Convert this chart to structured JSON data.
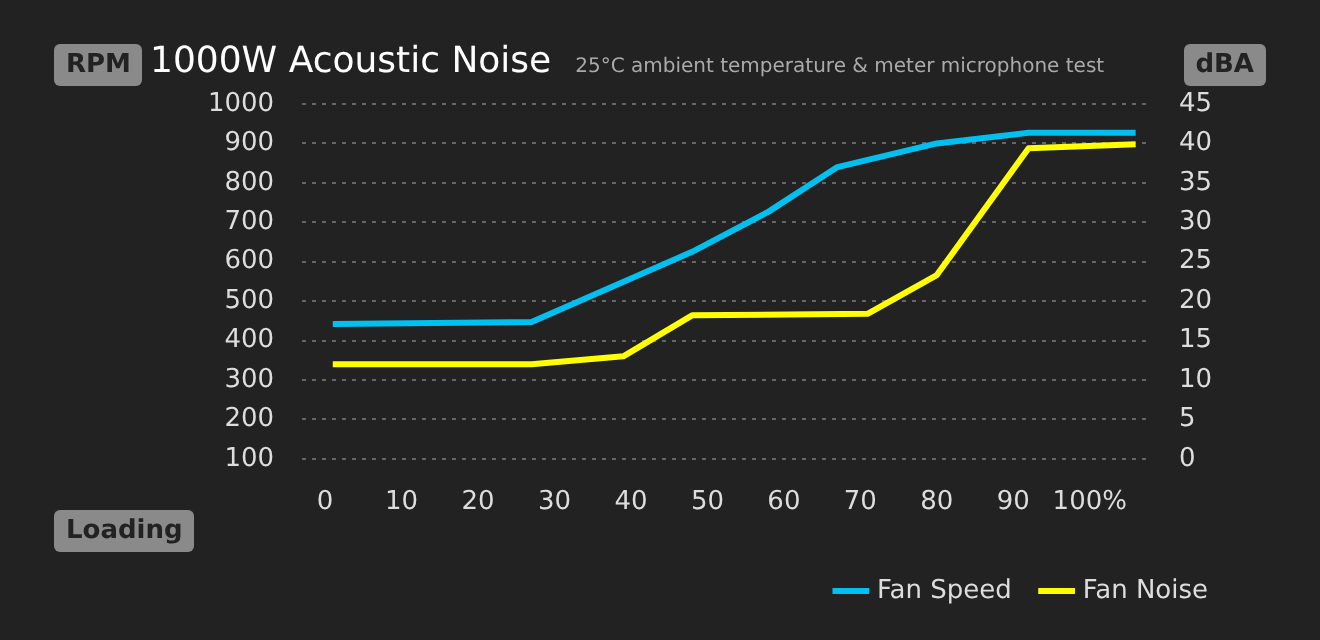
{
  "chart_data": {
    "type": "line",
    "title": "1000W Acoustic Noise",
    "subtitle": "25°C ambient temperature & meter microphone test",
    "xlabel": "Loading",
    "ylabel": "RPM",
    "y2label": "dBA",
    "xlim": [
      -3,
      108
    ],
    "xticks": [
      0,
      10,
      20,
      30,
      40,
      50,
      60,
      70,
      80,
      90,
      {
        "value": 100,
        "label": "100%"
      }
    ],
    "ylim": [
      100,
      1000
    ],
    "yticks": [
      100,
      200,
      300,
      400,
      500,
      600,
      700,
      800,
      900,
      1000
    ],
    "y2lim": [
      0,
      45
    ],
    "y2ticks": [
      0,
      5,
      10,
      15,
      20,
      25,
      30,
      35,
      40,
      45
    ],
    "grid": "y",
    "legend": "bottom right",
    "marker": "none",
    "line_style": "solid",
    "series": [
      {
        "name": "Fan Speed",
        "color": "#00c0f0",
        "x": [
          1,
          27,
          48,
          58,
          67,
          80,
          92,
          106
        ],
        "values": [
          442,
          447,
          625,
          727,
          840,
          900,
          927,
          927
        ]
      },
      {
        "name": "Fan Noise",
        "color": "#ffff00",
        "axis": "y2",
        "x": [
          1,
          27,
          39,
          48,
          71,
          80,
          92,
          106
        ],
        "values": [
          12,
          12,
          13,
          18.2,
          18.4,
          23.3,
          39.4,
          39.9
        ]
      }
    ]
  }
}
